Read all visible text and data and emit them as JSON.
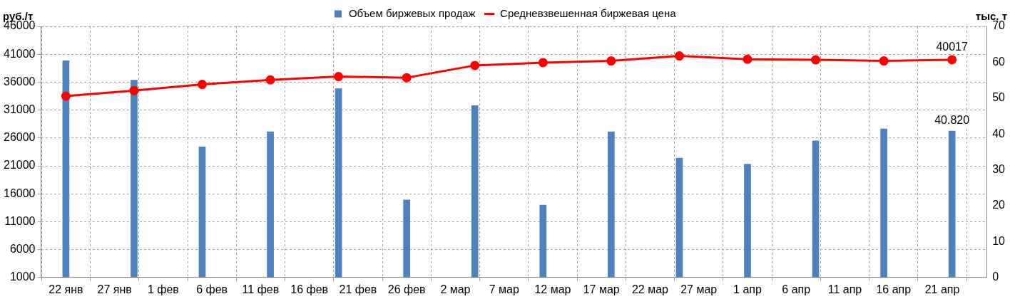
{
  "chart_data": {
    "type": "bar",
    "ylabel": "руб./т",
    "y2label": "тыс. т",
    "x": [
      "--01-22",
      "--01-29",
      "--02-05",
      "--02-12",
      "--02-19",
      "--02-26",
      "--03-04",
      "--03-11",
      "--03-18",
      "--03-25",
      "--04-01",
      "--04-08",
      "--04-15",
      "--04-22"
    ],
    "series": [
      {
        "name": "Объем биржевых продаж",
        "axis": "y2",
        "color": "#4f81bd",
        "values": [
          60.4,
          55.0,
          36.4,
          40.6,
          52.6,
          21.6,
          47.9,
          20.2,
          40.6,
          33.3,
          31.6,
          38.1,
          41.4,
          40.82
        ],
        "value_labels": [
          null,
          null,
          null,
          null,
          null,
          null,
          null,
          null,
          null,
          null,
          null,
          null,
          null,
          "40.820"
        ]
      },
      {
        "name": "Средневзвешенная биржевая цена",
        "type": "line",
        "color": "#ff0000",
        "values": [
          33500,
          34500,
          35600,
          36400,
          37000,
          36800,
          39000,
          39500,
          39800,
          40700,
          40100,
          40000,
          39800,
          40017
        ],
        "value_labels": [
          null,
          null,
          null,
          null,
          null,
          null,
          null,
          null,
          null,
          null,
          null,
          null,
          null,
          "40017"
        ]
      }
    ],
    "xlim": [
      "--01-22",
      "--04-23"
    ],
    "xticks": [
      {
        "value": "--01-22",
        "label": "22 янв"
      },
      {
        "value": "--01-27",
        "label": "27 янв"
      },
      {
        "value": "--02-01",
        "label": "1 фев"
      },
      {
        "value": "--02-06",
        "label": "6 фев"
      },
      {
        "value": "--02-11",
        "label": "11 фев"
      },
      {
        "value": "--02-16",
        "label": "16 фев"
      },
      {
        "value": "--02-21",
        "label": "21 фев"
      },
      {
        "value": "--02-26",
        "label": "26 фев"
      },
      {
        "value": "--03-02",
        "label": "2 мар"
      },
      {
        "value": "--03-07",
        "label": "7 мар"
      },
      {
        "value": "--03-12",
        "label": "12 мар"
      },
      {
        "value": "--03-17",
        "label": "17 мар"
      },
      {
        "value": "--03-22",
        "label": "22 мар"
      },
      {
        "value": "--03-27",
        "label": "27 мар"
      },
      {
        "value": "--04-01",
        "label": "1 апр"
      },
      {
        "value": "--04-06",
        "label": "6 апр"
      },
      {
        "value": "--04-11",
        "label": "11 апр"
      },
      {
        "value": "--04-16",
        "label": "16 апр"
      },
      {
        "value": "--04-21",
        "label": "21 апр"
      }
    ],
    "ylim": [
      1000,
      46000
    ],
    "yticks": [
      1000,
      6000,
      11000,
      16000,
      21000,
      26000,
      31000,
      36000,
      41000,
      46000
    ],
    "y2lim": [
      0,
      70
    ],
    "y2ticks": [
      0,
      10,
      20,
      30,
      40,
      50,
      60,
      70
    ],
    "grid": true,
    "legend": "top",
    "marker": "circle",
    "line_style": "solid"
  }
}
